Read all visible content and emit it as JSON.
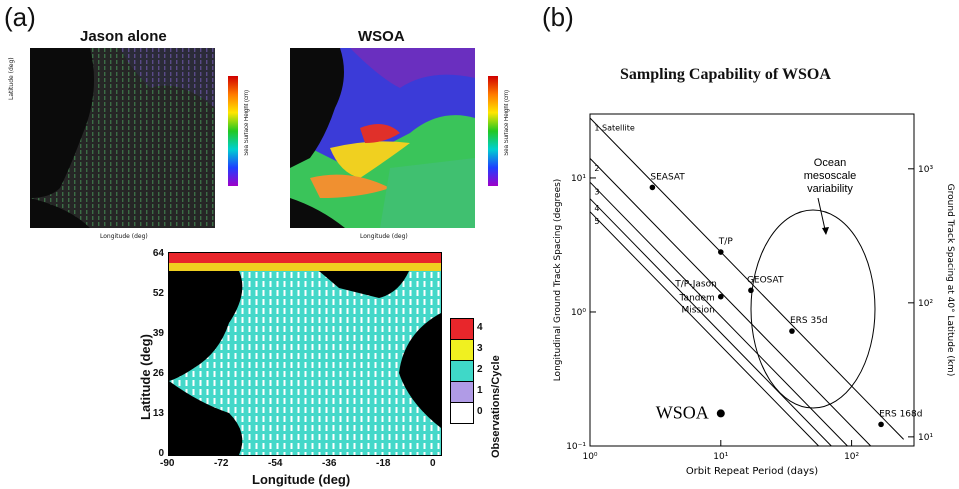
{
  "panel_a_label": "(a)",
  "panel_b_label": "(b)",
  "map1": {
    "title": "Jason alone",
    "ylabel": "Latitude (deg)",
    "xlabel": "Longitude (deg)",
    "colorbar_label": "Sea Surface Height (cm)"
  },
  "map2": {
    "title": "WSOA",
    "xlabel": "Longitude (deg)",
    "colorbar_label": "Sea Surface Height (cm)"
  },
  "map3": {
    "ylabel": "Latitude (deg)",
    "xlabel": "Longitude (deg)",
    "yticks": [
      "64",
      "52",
      "39",
      "26",
      "13",
      "0"
    ],
    "xticks": [
      "-90",
      "-72",
      "-54",
      "-36",
      "-18",
      "0"
    ],
    "legend_title": "Observations/Cycle",
    "legend": [
      {
        "label": "4",
        "color": "#e8262b"
      },
      {
        "label": "3",
        "color": "#f0f020"
      },
      {
        "label": "2",
        "color": "#3fd8c8"
      },
      {
        "label": "1",
        "color": "#b09be6"
      },
      {
        "label": "0",
        "color": "#ffffff"
      }
    ]
  },
  "chart_data": {
    "type": "line",
    "title": "Sampling Capability of WSOA",
    "xlabel": "Orbit Repeat Period (days)",
    "ylabel": "Longitudinal Ground Track Spacing (degrees)",
    "y2label": "Ground Track Spacing at 40° Latitude (km)",
    "xscale": "log",
    "yscale": "log",
    "xlim": [
      1,
      300
    ],
    "ylim": [
      0.1,
      30
    ],
    "xticks": [
      {
        "v": 1,
        "label": "10⁰"
      },
      {
        "v": 10,
        "label": "10¹"
      },
      {
        "v": 100,
        "label": "10²"
      }
    ],
    "yticks": [
      {
        "v": 0.1,
        "label": "10⁻¹"
      },
      {
        "v": 1,
        "label": "10⁰"
      },
      {
        "v": 10,
        "label": "10¹"
      }
    ],
    "y2ticks": [
      {
        "v": 0.117,
        "label": "10¹"
      },
      {
        "v": 1.17,
        "label": "10²"
      },
      {
        "v": 11.7,
        "label": "10³"
      }
    ],
    "series": [
      {
        "name": "1 Satellite",
        "x": [
          1,
          250
        ],
        "y": [
          28,
          0.112
        ]
      },
      {
        "name": "2",
        "x": [
          1,
          140
        ],
        "y": [
          14,
          0.1
        ]
      },
      {
        "name": "3",
        "x": [
          1,
          93
        ],
        "y": [
          9.3,
          0.1
        ]
      },
      {
        "name": "4",
        "x": [
          1,
          70
        ],
        "y": [
          7,
          0.1
        ]
      },
      {
        "name": "5",
        "x": [
          1,
          56
        ],
        "y": [
          5.6,
          0.1
        ]
      }
    ],
    "points": [
      {
        "label": "SEASAT",
        "x": 3,
        "y": 8.5
      },
      {
        "label": "T/P",
        "x": 10,
        "y": 2.8
      },
      {
        "label": "GEOSAT",
        "x": 17,
        "y": 1.45
      },
      {
        "label": "T/P-Jason",
        "x": 10,
        "y": 1.3
      },
      {
        "label": "ERS 35d",
        "x": 35,
        "y": 0.72
      },
      {
        "label": "ERS 168d",
        "x": 168,
        "y": 0.145
      },
      {
        "label": "WSOA",
        "x": 10,
        "y": 0.175
      }
    ],
    "annotations": [
      "Tandem",
      "Mission",
      "Ocean",
      "mesoscale",
      "variability"
    ]
  }
}
